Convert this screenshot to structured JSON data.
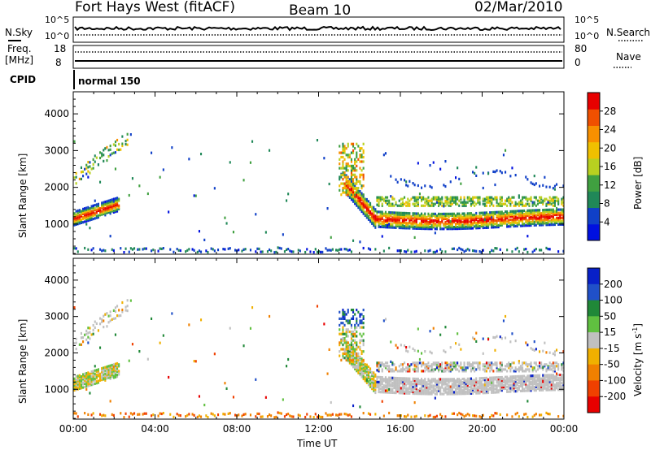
{
  "header": {
    "title": "Fort Hays West (fitACF)",
    "beam": "Beam 10",
    "date": "02/Mar/2010"
  },
  "top_panels": {
    "nsky_label": "N.Sky",
    "nsky_scale_top": "10^5",
    "nsky_scale_bottom": "10^0",
    "nsearch_label": "N.Search",
    "freq_label": "Freq.",
    "freq_unit": "[MHz]",
    "freq_top": "18",
    "freq_bottom": "8",
    "nave_label": "Nave",
    "nave_top": "80",
    "nave_bottom": "0",
    "cpid_label": "CPID",
    "cpid_value": "normal 150"
  },
  "chart_data": [
    {
      "type": "heatmap",
      "name": "power",
      "ylabel": "Slant Range [km]",
      "xlabel": "Time UT",
      "x_ticks": [
        "00:00",
        "04:00",
        "08:00",
        "12:00",
        "16:00",
        "20:00",
        "00:00"
      ],
      "y_ticks": [
        "1000",
        "2000",
        "3000",
        "4000"
      ],
      "xlim_hours": [
        0,
        24
      ],
      "ylim_km": [
        180,
        4600
      ],
      "colorbar_label": "Power [dB]",
      "colorbar_ticks": [
        "4",
        "8",
        "12",
        "16",
        "20",
        "24",
        "28"
      ],
      "colorbar_colors": [
        "#0010e0",
        "#1040c8",
        "#208858",
        "#40a040",
        "#b8d020",
        "#f0c000",
        "#f89000",
        "#f05000",
        "#e80000"
      ]
    },
    {
      "type": "heatmap",
      "name": "velocity",
      "ylabel": "Slant Range [km]",
      "xlabel": "Time UT",
      "x_ticks": [
        "00:00",
        "04:00",
        "08:00",
        "12:00",
        "16:00",
        "20:00",
        "00:00"
      ],
      "y_ticks": [
        "1000",
        "2000",
        "3000",
        "4000"
      ],
      "xlim_hours": [
        0,
        24
      ],
      "ylim_km": [
        180,
        4600
      ],
      "colorbar_label": "Velocity [m s",
      "colorbar_unit_exp": "-1",
      "colorbar_unit_close": "]",
      "colorbar_ticks": [
        "200",
        "100",
        "50",
        "15",
        "-15",
        "-50",
        "-100",
        "-200"
      ],
      "colorbar_colors": [
        "#0820c8",
        "#2050c8",
        "#208838",
        "#60c040",
        "#c0c0c0",
        "#f0b000",
        "#f08000",
        "#f04000",
        "#e80000"
      ],
      "ground_scatter_color": "#c0c0c0"
    }
  ],
  "xaxis_title": "Time UT"
}
